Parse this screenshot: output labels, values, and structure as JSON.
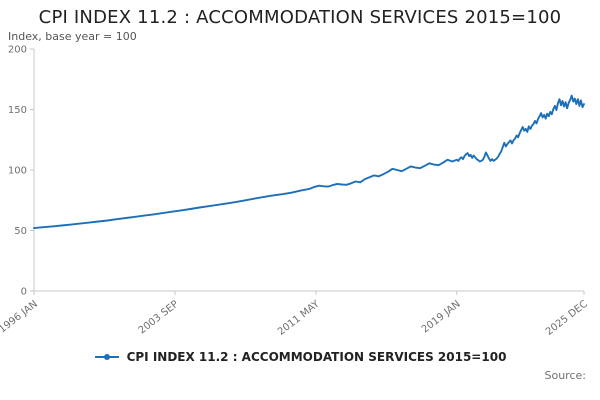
{
  "header": {
    "title": "CPI INDEX 11.2 : ACCOMMODATION SERVICES 2015=100",
    "subtitle": "Index, base year = 100"
  },
  "legend": {
    "label": "CPI INDEX 11.2 : ACCOMMODATION SERVICES 2015=100"
  },
  "footer": {
    "source_label": "Source:"
  },
  "colors": {
    "line": "#1d70b8",
    "axis": "#c8c8c8",
    "tick_text": "#707071"
  },
  "chart_data": {
    "type": "line",
    "title": "CPI INDEX 11.2 : ACCOMMODATION SERVICES 2015=100",
    "subtitle": "Index, base year = 100",
    "xlabel": "",
    "ylabel": "Index, base year = 100",
    "xlim": [
      1996.0,
      2025.917
    ],
    "ylim": [
      0,
      200
    ],
    "grid": false,
    "legend_position": "bottom",
    "y_ticks": [
      0,
      50,
      100,
      150,
      200
    ],
    "x_ticks": [
      {
        "x": 1996.0,
        "label": "1996 JAN"
      },
      {
        "x": 2003.667,
        "label": "2003 SEP"
      },
      {
        "x": 2011.333,
        "label": "2011 MAY"
      },
      {
        "x": 2019.0,
        "label": "2019 JAN"
      },
      {
        "x": 2025.917,
        "label": "2025 DEC"
      }
    ],
    "series": [
      {
        "name": "CPI INDEX 11.2 : ACCOMMODATION SERVICES 2015=100",
        "points": [
          [
            1996,
            52
          ],
          [
            1996.5,
            52.7
          ],
          [
            1997,
            53.4
          ],
          [
            1997.5,
            54.1
          ],
          [
            1998,
            54.9
          ],
          [
            1998.5,
            55.7
          ],
          [
            1999,
            56.5
          ],
          [
            1999.5,
            57.4
          ],
          [
            2000,
            58.3
          ],
          [
            2000.5,
            59.3
          ],
          [
            2001,
            60.3
          ],
          [
            2001.5,
            61.3
          ],
          [
            2002,
            62.3
          ],
          [
            2002.5,
            63.3
          ],
          [
            2003,
            64.4
          ],
          [
            2003.5,
            65.5
          ],
          [
            2004,
            66.6
          ],
          [
            2004.5,
            67.8
          ],
          [
            2005,
            69
          ],
          [
            2005.5,
            70.1
          ],
          [
            2006,
            71.2
          ],
          [
            2006.5,
            72.4
          ],
          [
            2007,
            73.6
          ],
          [
            2007.5,
            75
          ],
          [
            2008,
            76.4
          ],
          [
            2008.5,
            77.8
          ],
          [
            2009,
            79
          ],
          [
            2009.5,
            80
          ],
          [
            2010,
            81.2
          ],
          [
            2010.5,
            83
          ],
          [
            2011,
            84.5
          ],
          [
            2011.25,
            86
          ],
          [
            2011.5,
            87
          ],
          [
            2011.75,
            86.5
          ],
          [
            2012,
            86.3
          ],
          [
            2012.25,
            87.5
          ],
          [
            2012.5,
            88.5
          ],
          [
            2012.75,
            88
          ],
          [
            2013,
            87.8
          ],
          [
            2013.25,
            89
          ],
          [
            2013.5,
            90.5
          ],
          [
            2013.75,
            89.8
          ],
          [
            2014,
            92.5
          ],
          [
            2014.25,
            94
          ],
          [
            2014.5,
            95.5
          ],
          [
            2014.75,
            94.8
          ],
          [
            2015,
            96.5
          ],
          [
            2015.25,
            98.5
          ],
          [
            2015.5,
            101
          ],
          [
            2015.75,
            100
          ],
          [
            2016,
            99
          ],
          [
            2016.25,
            101
          ],
          [
            2016.5,
            103
          ],
          [
            2016.75,
            102
          ],
          [
            2017,
            101.5
          ],
          [
            2017.25,
            103.5
          ],
          [
            2017.5,
            105.5
          ],
          [
            2017.75,
            104.5
          ],
          [
            2018,
            104
          ],
          [
            2018.25,
            106
          ],
          [
            2018.5,
            108.5
          ],
          [
            2018.75,
            107
          ],
          [
            2019,
            108.5
          ],
          [
            2019.083,
            107.5
          ],
          [
            2019.167,
            109.5
          ],
          [
            2019.25,
            110.5
          ],
          [
            2019.333,
            109
          ],
          [
            2019.417,
            111.5
          ],
          [
            2019.5,
            113
          ],
          [
            2019.583,
            114
          ],
          [
            2019.667,
            111.5
          ],
          [
            2019.75,
            112.5
          ],
          [
            2019.833,
            110
          ],
          [
            2019.917,
            112
          ],
          [
            2020,
            110.5
          ],
          [
            2020.083,
            109
          ],
          [
            2020.167,
            108
          ],
          [
            2020.25,
            107
          ],
          [
            2020.333,
            107.5
          ],
          [
            2020.417,
            108.5
          ],
          [
            2020.5,
            111
          ],
          [
            2020.583,
            114.5
          ],
          [
            2020.667,
            112
          ],
          [
            2020.75,
            109.5
          ],
          [
            2020.833,
            107.5
          ],
          [
            2020.917,
            109
          ],
          [
            2021,
            107.5
          ],
          [
            2021.083,
            108.5
          ],
          [
            2021.167,
            109.5
          ],
          [
            2021.25,
            111
          ],
          [
            2021.333,
            113.5
          ],
          [
            2021.417,
            115.5
          ],
          [
            2021.5,
            119
          ],
          [
            2021.583,
            122.5
          ],
          [
            2021.667,
            119.5
          ],
          [
            2021.75,
            121.5
          ],
          [
            2021.833,
            123
          ],
          [
            2021.917,
            124.5
          ],
          [
            2022,
            122
          ],
          [
            2022.083,
            124.5
          ],
          [
            2022.167,
            126
          ],
          [
            2022.25,
            128.5
          ],
          [
            2022.333,
            127
          ],
          [
            2022.417,
            130.5
          ],
          [
            2022.5,
            133
          ],
          [
            2022.583,
            135.5
          ],
          [
            2022.667,
            132.5
          ],
          [
            2022.75,
            134
          ],
          [
            2022.833,
            131.5
          ],
          [
            2022.917,
            136
          ],
          [
            2023,
            134
          ],
          [
            2023.083,
            136.5
          ],
          [
            2023.167,
            138
          ],
          [
            2023.25,
            140.5
          ],
          [
            2023.333,
            138.5
          ],
          [
            2023.417,
            142
          ],
          [
            2023.5,
            144.5
          ],
          [
            2023.583,
            147
          ],
          [
            2023.667,
            143.5
          ],
          [
            2023.75,
            145.5
          ],
          [
            2023.833,
            142.5
          ],
          [
            2023.917,
            146.5
          ],
          [
            2024,
            144.5
          ],
          [
            2024.083,
            148
          ],
          [
            2024.167,
            146
          ],
          [
            2024.25,
            150.5
          ],
          [
            2024.333,
            153
          ],
          [
            2024.417,
            149.5
          ],
          [
            2024.5,
            155
          ],
          [
            2024.583,
            158.5
          ],
          [
            2024.667,
            153.5
          ],
          [
            2024.75,
            157
          ],
          [
            2024.833,
            152.5
          ],
          [
            2024.917,
            156
          ],
          [
            2025,
            151
          ],
          [
            2025.083,
            155.5
          ],
          [
            2025.167,
            158
          ],
          [
            2025.25,
            161.5
          ],
          [
            2025.333,
            156.5
          ],
          [
            2025.417,
            159
          ],
          [
            2025.5,
            154.5
          ],
          [
            2025.583,
            158.5
          ],
          [
            2025.667,
            153
          ],
          [
            2025.75,
            157.5
          ],
          [
            2025.833,
            152
          ],
          [
            2025.917,
            154.5
          ]
        ]
      }
    ]
  }
}
